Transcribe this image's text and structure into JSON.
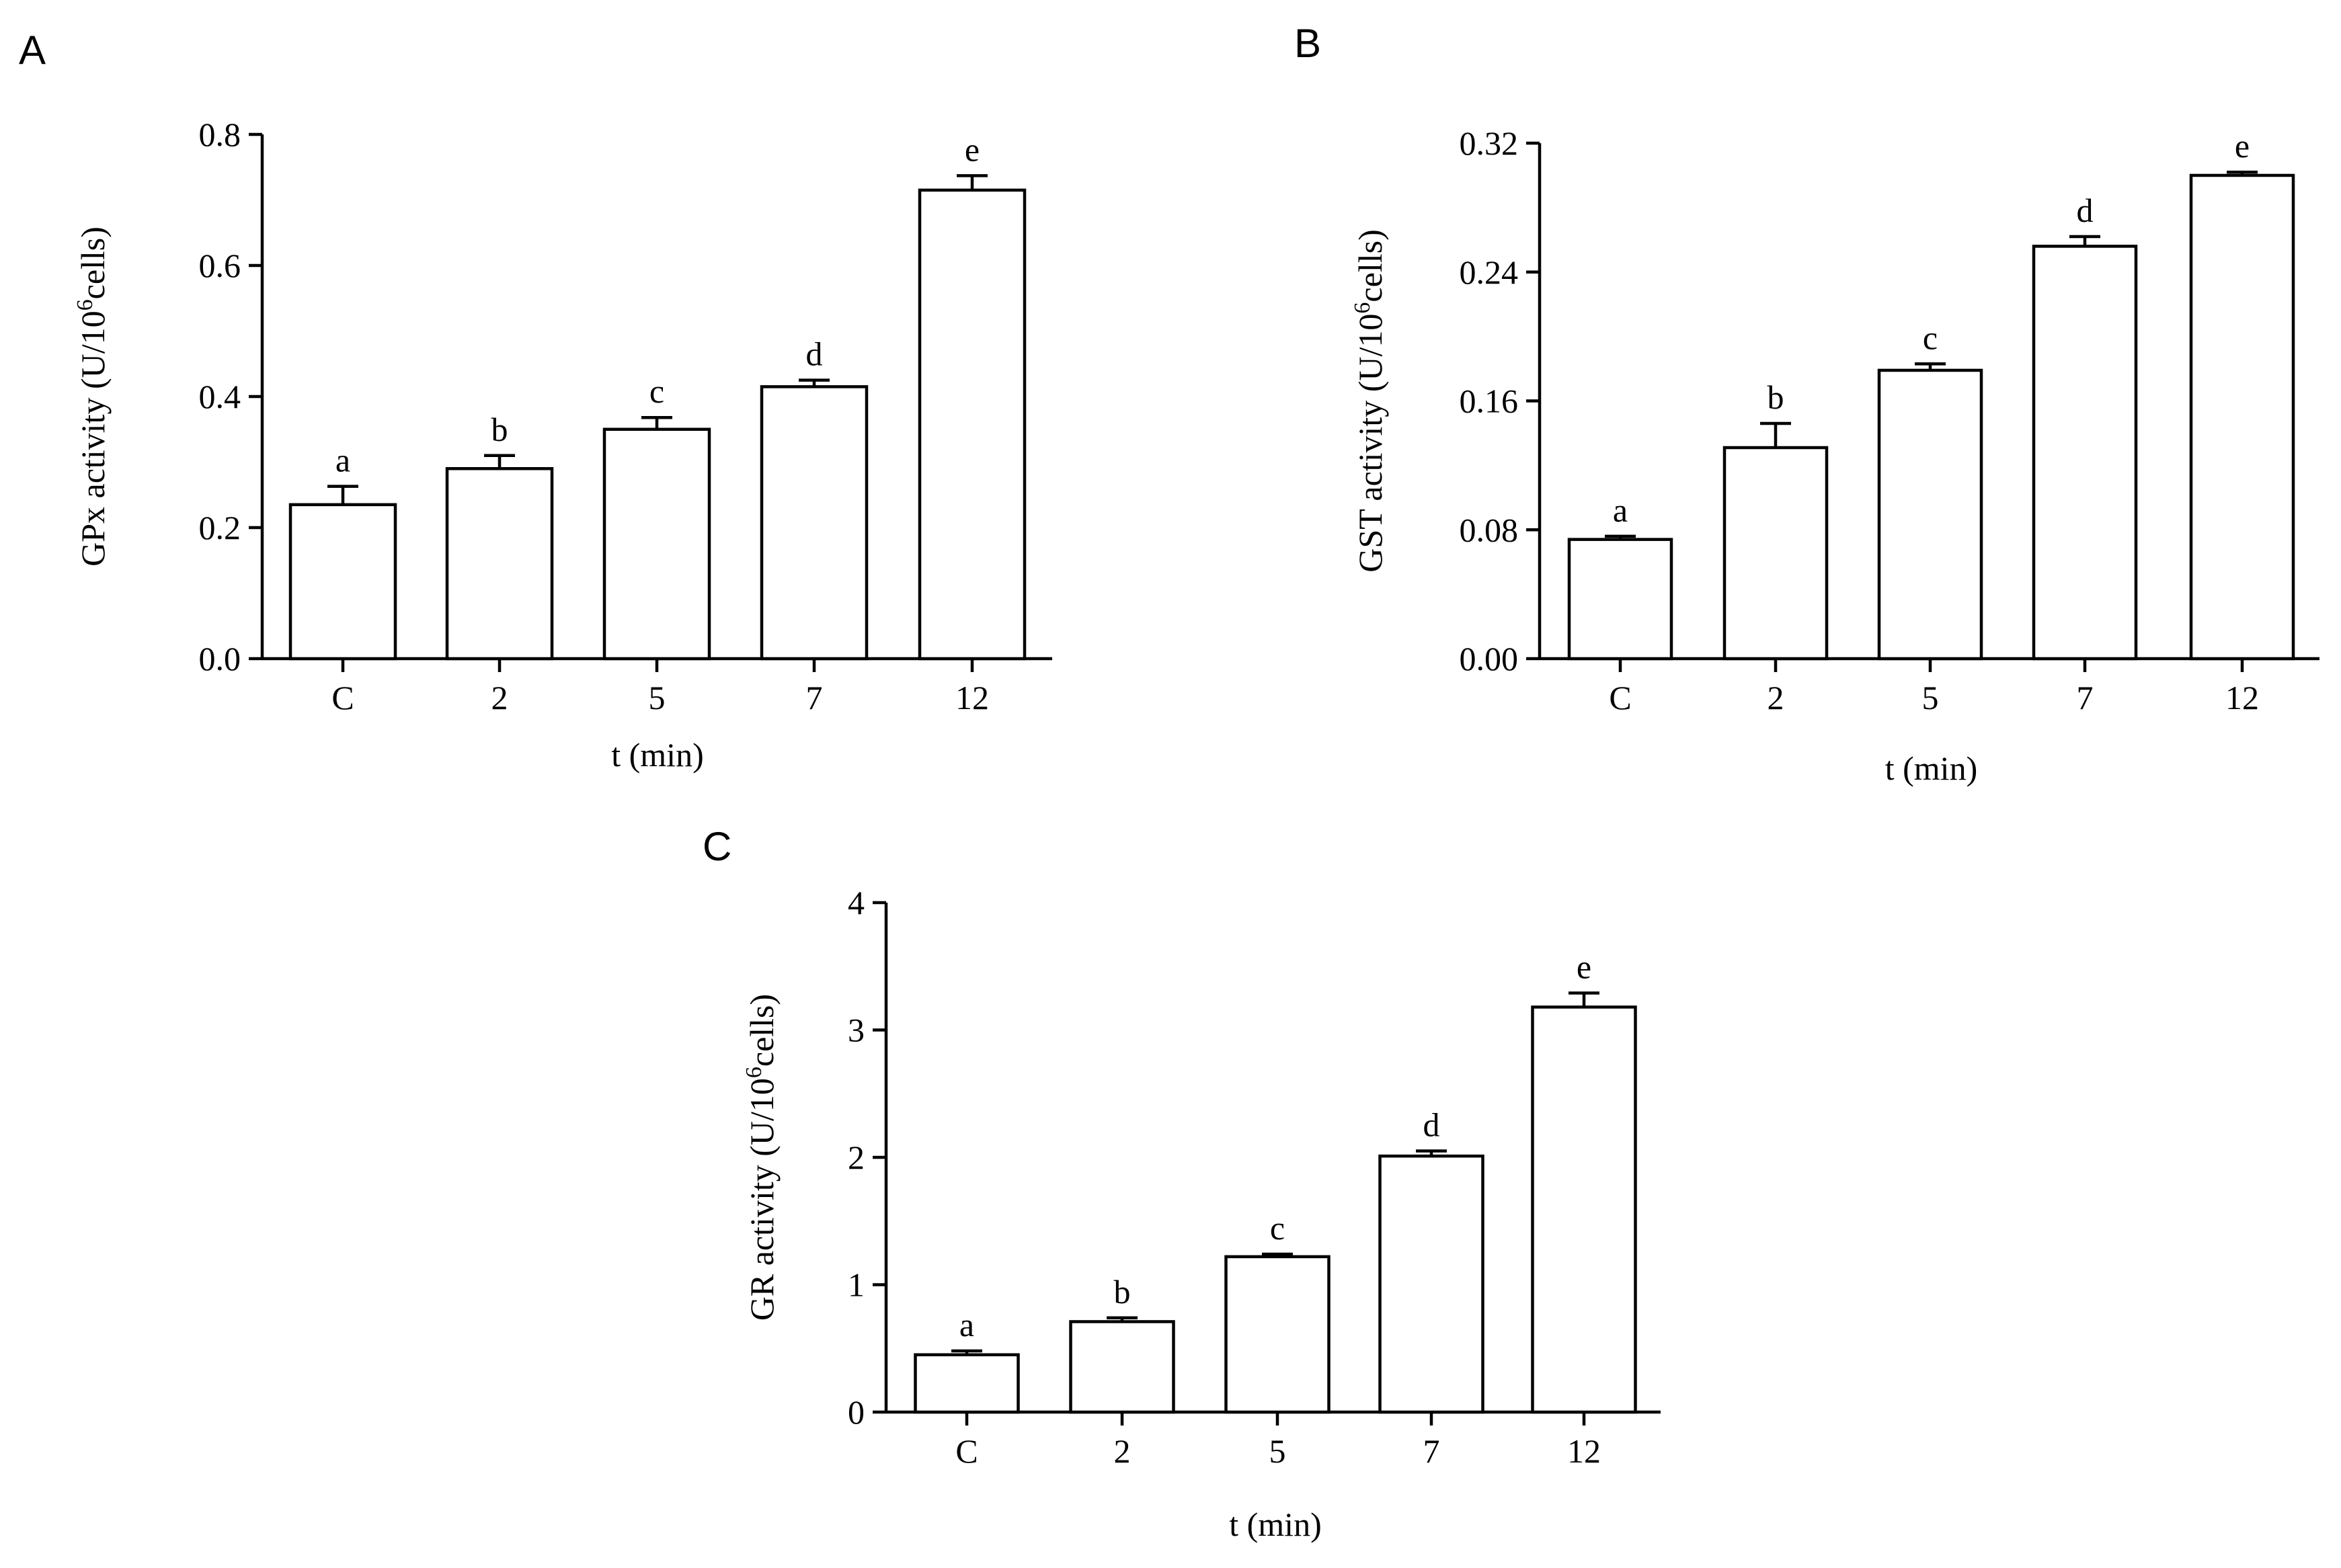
{
  "chart_data": [
    {
      "panel": "A",
      "type": "bar",
      "categories": [
        "C",
        "2",
        "5",
        "7",
        "12"
      ],
      "values": [
        0.235,
        0.29,
        0.35,
        0.415,
        0.715
      ],
      "errors": [
        0.028,
        0.02,
        0.018,
        0.01,
        0.022
      ],
      "significance": [
        "a",
        "b",
        "c",
        "d",
        "e"
      ],
      "xlabel": "t (min)",
      "ylabel": "GPx activity (U/10^6cells)",
      "ylabel_parts": [
        "GPx activity (U/10",
        "6",
        "cells)"
      ],
      "ylim": [
        0,
        0.8
      ],
      "yticks": [
        0,
        0.2,
        0.4,
        0.6,
        0.8
      ],
      "ytick_labels": [
        "0.0",
        "0.2",
        "0.4",
        "0.6",
        "0.8"
      ]
    },
    {
      "panel": "B",
      "type": "bar",
      "categories": [
        "C",
        "2",
        "5",
        "7",
        "12"
      ],
      "values": [
        0.074,
        0.131,
        0.179,
        0.256,
        0.3
      ],
      "errors": [
        0.002,
        0.015,
        0.004,
        0.006,
        0.002
      ],
      "significance": [
        "a",
        "b",
        "c",
        "d",
        "e"
      ],
      "xlabel": "t (min)",
      "ylabel": "GST activity (U/10^6cells)",
      "ylabel_parts": [
        "GST activity (U/10",
        "6",
        "cells)"
      ],
      "ylim": [
        0,
        0.32
      ],
      "yticks": [
        0,
        0.08,
        0.16,
        0.24,
        0.32
      ],
      "ytick_labels": [
        "0.00",
        "0.08",
        "0.16",
        "0.24",
        "0.32"
      ]
    },
    {
      "panel": "C",
      "type": "bar",
      "categories": [
        "C",
        "2",
        "5",
        "7",
        "12"
      ],
      "values": [
        0.45,
        0.71,
        1.22,
        2.01,
        3.18
      ],
      "errors": [
        0.03,
        0.03,
        0.02,
        0.04,
        0.11
      ],
      "significance": [
        "a",
        "b",
        "c",
        "d",
        "e"
      ],
      "xlabel": "t (min)",
      "ylabel": "GR activity (U/10^6cells)",
      "ylabel_parts": [
        "GR activity (U/10",
        "6",
        "cells)"
      ],
      "ylim": [
        0,
        4
      ],
      "yticks": [
        0,
        1,
        2,
        3,
        4
      ],
      "ytick_labels": [
        "0",
        "1",
        "2",
        "3",
        "4"
      ]
    }
  ]
}
